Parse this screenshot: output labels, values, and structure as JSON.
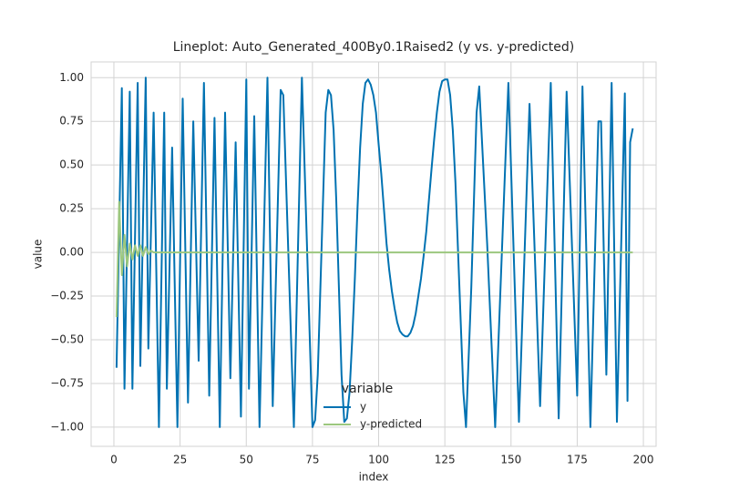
{
  "chart_data": {
    "type": "line",
    "title": "Lineplot: Auto_Generated_400By0.1Raised2 (y vs. y-predicted)",
    "x_label": "index",
    "y_label": "value",
    "legend_title": "variable",
    "legend": "lower center",
    "grid": true,
    "xlim": [
      -8.6,
      204.8
    ],
    "xticks": [
      0,
      25,
      50,
      75,
      100,
      125,
      150,
      175,
      200
    ],
    "ylim": [
      -1.11,
      1.09
    ],
    "yticks": [
      {
        "value": -1,
        "label": "−1.00"
      },
      {
        "value": -0.75,
        "label": "−0.75"
      },
      {
        "value": -0.5,
        "label": "−0.50"
      },
      {
        "value": -0.25,
        "label": "−0.25"
      },
      {
        "value": 0,
        "label": "0.00"
      },
      {
        "value": 0.25,
        "label": "0.25"
      },
      {
        "value": 0.5,
        "label": "0.50"
      },
      {
        "value": 0.75,
        "label": "0.75"
      },
      {
        "value": 1,
        "label": "1.00"
      }
    ],
    "series": [
      {
        "name": "y",
        "color": "#0072b2",
        "x": [
          1,
          3,
          4,
          6,
          7,
          9,
          10,
          12,
          13,
          15,
          17,
          19,
          20,
          22,
          24,
          26,
          28,
          30,
          32,
          34,
          36,
          38,
          40,
          42,
          44,
          46,
          48,
          50,
          51,
          53,
          55,
          58,
          60,
          63,
          64,
          68,
          71,
          75,
          76,
          77,
          78,
          79,
          80,
          81,
          82,
          83,
          84,
          85,
          86,
          87,
          88,
          89,
          90,
          91,
          92,
          93,
          94,
          95,
          96,
          97,
          98,
          99,
          100,
          101,
          102,
          103,
          104,
          105,
          106,
          107,
          108,
          109,
          110,
          111,
          112,
          113,
          114,
          115,
          116,
          117,
          118,
          119,
          120,
          121,
          122,
          123,
          124,
          125,
          126,
          127,
          128,
          129,
          130,
          131,
          132,
          133,
          135,
          137,
          138,
          141,
          144,
          149,
          153,
          157,
          161,
          165,
          168,
          171,
          175,
          177,
          180,
          183,
          184,
          186,
          188,
          190,
          193,
          194,
          195,
          196
        ],
        "values": [
          -0.66,
          0.94,
          -0.78,
          0.92,
          -0.78,
          0.97,
          -0.65,
          1.0,
          -0.55,
          0.8,
          -1.0,
          0.8,
          -0.78,
          0.6,
          -1.0,
          0.88,
          -0.86,
          0.75,
          -0.62,
          0.97,
          -0.82,
          0.77,
          -1.0,
          0.8,
          -0.72,
          0.63,
          -0.94,
          0.99,
          -0.78,
          0.78,
          -1.0,
          1.0,
          -0.88,
          0.93,
          0.9,
          -1.0,
          1.0,
          -1.0,
          -0.96,
          -0.7,
          -0.2,
          0.3,
          0.8,
          0.93,
          0.9,
          0.7,
          0.3,
          -0.2,
          -0.7,
          -0.97,
          -0.95,
          -0.8,
          -0.5,
          -0.15,
          0.25,
          0.6,
          0.85,
          0.97,
          0.99,
          0.96,
          0.9,
          0.8,
          0.62,
          0.45,
          0.25,
          0.05,
          -0.1,
          -0.22,
          -0.32,
          -0.4,
          -0.45,
          -0.47,
          -0.48,
          -0.48,
          -0.46,
          -0.42,
          -0.35,
          -0.25,
          -0.15,
          -0.02,
          0.12,
          0.3,
          0.48,
          0.65,
          0.8,
          0.92,
          0.98,
          0.99,
          0.99,
          0.9,
          0.7,
          0.4,
          0.0,
          -0.4,
          -0.8,
          -1.0,
          -0.2,
          0.8,
          0.95,
          0.05,
          -1.0,
          0.97,
          -0.97,
          0.85,
          -0.88,
          0.97,
          -0.95,
          0.92,
          -0.82,
          0.95,
          -1.0,
          0.75,
          0.75,
          -0.7,
          0.97,
          -0.97,
          0.91,
          -0.85,
          0.63,
          0.71
        ]
      },
      {
        "name": "y-predicted",
        "color": "#9cc77e",
        "x": [
          1,
          2,
          3,
          4,
          5,
          6,
          7,
          8,
          9,
          10,
          11,
          12,
          13,
          14,
          15,
          196
        ],
        "values": [
          -0.37,
          0.29,
          -0.13,
          0.1,
          -0.08,
          0.05,
          -0.04,
          0.04,
          -0.02,
          0.04,
          -0.02,
          0.03,
          -0.01,
          0.01,
          0,
          0
        ]
      }
    ]
  }
}
